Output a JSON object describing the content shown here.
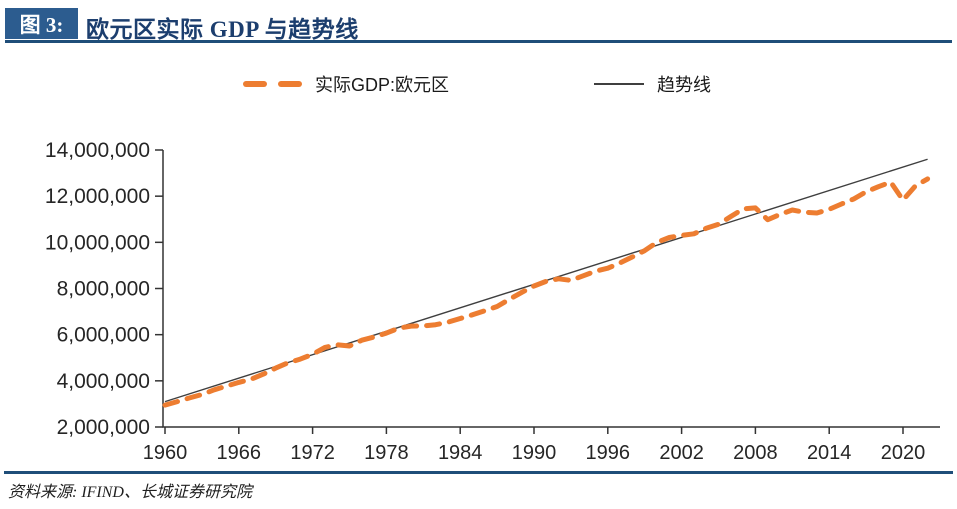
{
  "header": {
    "tag": "图 3:",
    "title": "欧元区实际 GDP 与趋势线"
  },
  "legend": {
    "gdp_label": "实际GDP:欧元区",
    "trend_label": "趋势线"
  },
  "footer": {
    "source": "资料来源: IFIND、长城证券研究院"
  },
  "colors": {
    "accent_orange": "#ED7D31",
    "trend_black": "#3F3F3F",
    "header_navy": "#1F4E79",
    "badge_blue": "#2C5C8F",
    "title_navy": "#1C3E6E",
    "axis_gray": "#333333",
    "label_color": "#262626"
  },
  "chart_data": {
    "type": "line",
    "title": "欧元区实际 GDP 与趋势线",
    "xlabel": "",
    "ylabel": "",
    "grid": false,
    "legend_position": "top",
    "xlim": [
      1960,
      2023
    ],
    "ylim": [
      2000000,
      14000000
    ],
    "xticks": [
      1960,
      1966,
      1972,
      1978,
      1984,
      1990,
      1996,
      2002,
      2008,
      2014,
      2020
    ],
    "yticks": [
      {
        "value": 2000000,
        "label": "2,000,000"
      },
      {
        "value": 4000000,
        "label": "4,000,000"
      },
      {
        "value": 6000000,
        "label": "6,000,000"
      },
      {
        "value": 8000000,
        "label": "8,000,000"
      },
      {
        "value": 10000000,
        "label": "10,000,000"
      },
      {
        "value": 12000000,
        "label": "12,000,000"
      },
      {
        "value": 14000000,
        "label": "14,000,000"
      }
    ],
    "series": [
      {
        "name": "实际GDP:欧元区",
        "style": "dashed",
        "color": "#ED7D31",
        "years": [
          1960,
          1961,
          1962,
          1963,
          1964,
          1965,
          1966,
          1967,
          1968,
          1969,
          1970,
          1971,
          1972,
          1973,
          1974,
          1975,
          1976,
          1977,
          1978,
          1979,
          1980,
          1981,
          1982,
          1983,
          1984,
          1985,
          1986,
          1987,
          1988,
          1989,
          1990,
          1991,
          1992,
          1993,
          1994,
          1995,
          1996,
          1997,
          1998,
          1999,
          2000,
          2001,
          2002,
          2003,
          2004,
          2005,
          2006,
          2007,
          2008,
          2009,
          2010,
          2011,
          2012,
          2013,
          2014,
          2015,
          2016,
          2017,
          2018,
          2019,
          2020,
          2021,
          2022
        ],
        "values": [
          2950000,
          3100000,
          3260000,
          3410000,
          3610000,
          3770000,
          3930000,
          4070000,
          4290000,
          4550000,
          4780000,
          4940000,
          5150000,
          5450000,
          5560000,
          5510000,
          5760000,
          5900000,
          6070000,
          6280000,
          6370000,
          6380000,
          6430000,
          6540000,
          6700000,
          6860000,
          7040000,
          7220000,
          7530000,
          7830000,
          8110000,
          8310000,
          8420000,
          8350000,
          8550000,
          8750000,
          8880000,
          9110000,
          9370000,
          9640000,
          10000000,
          10210000,
          10300000,
          10370000,
          10610000,
          10780000,
          11120000,
          11450000,
          11490000,
          10980000,
          11210000,
          11400000,
          11300000,
          11270000,
          11430000,
          11660000,
          11880000,
          12190000,
          12410000,
          12610000,
          11830000,
          12440000,
          12750000
        ]
      },
      {
        "name": "趋势线",
        "style": "solid",
        "color": "#3F3F3F",
        "points": [
          {
            "year": 1960,
            "value": 3100000
          },
          {
            "year": 2022,
            "value": 13600000
          }
        ]
      }
    ]
  }
}
